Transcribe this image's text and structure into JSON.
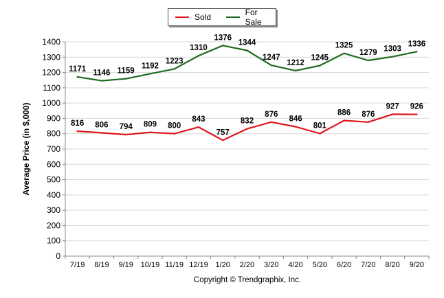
{
  "chart_data": {
    "type": "line",
    "categories": [
      "7/19",
      "8/19",
      "9/19",
      "10/19",
      "11/19",
      "12/19",
      "1/20",
      "2/20",
      "3/20",
      "4/20",
      "5/20",
      "6/20",
      "7/20",
      "8/20",
      "9/20"
    ],
    "series": [
      {
        "name": "Sold",
        "color": "#e0161c",
        "values": [
          816,
          806,
          794,
          809,
          800,
          843,
          757,
          832,
          876,
          846,
          801,
          886,
          876,
          927,
          926
        ]
      },
      {
        "name": "For Sale",
        "color": "#1e6b1e",
        "values": [
          1171,
          1146,
          1159,
          1192,
          1223,
          1310,
          1376,
          1344,
          1247,
          1212,
          1245,
          1325,
          1279,
          1303,
          1336
        ]
      }
    ],
    "ylabel": "Average Price (in $,000)",
    "xlabel": "",
    "ylim": [
      0,
      1400
    ],
    "ytick_step": 100,
    "grid": true,
    "legend_position": "top-center"
  },
  "legend": {
    "sold_label": "Sold",
    "forsale_label": "For Sale"
  },
  "ylabel_text": "Average Price (in $,000)",
  "copyright": "Copyright © Trendgraphix, Inc."
}
